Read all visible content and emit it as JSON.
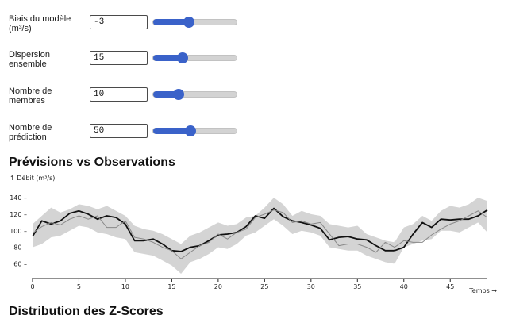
{
  "controls": [
    {
      "label": "Biais du modèle (m³/s)",
      "value": "-3",
      "fraction": 0.42
    },
    {
      "label": "Dispersion ensemble",
      "value": "15",
      "fraction": 0.35
    },
    {
      "label": "Nombre de membres",
      "value": "10",
      "fraction": 0.3
    },
    {
      "label": "Nombre de prédiction",
      "value": "50",
      "fraction": 0.44
    }
  ],
  "section_forecast": "Prévisions vs Observations",
  "section_zscores": "Distribution des Z-Scores",
  "chart_data": {
    "type": "line",
    "ylabel": "↑ Débit (m³/s)",
    "xlabel": "Temps →",
    "xlim": [
      0,
      49
    ],
    "ylim": [
      48,
      142
    ],
    "xticks": [
      0,
      5,
      10,
      15,
      20,
      25,
      30,
      35,
      40,
      45
    ],
    "yticks": [
      60,
      80,
      100,
      120,
      140
    ],
    "colors": {
      "band": "#d4d4d4",
      "prediction": "#111111",
      "observation": "#888888"
    },
    "x": [
      0,
      1,
      2,
      3,
      4,
      5,
      6,
      7,
      8,
      9,
      10,
      11,
      12,
      13,
      14,
      15,
      16,
      17,
      18,
      19,
      20,
      21,
      22,
      23,
      24,
      25,
      26,
      27,
      28,
      29,
      30,
      31,
      32,
      33,
      34,
      35,
      36,
      37,
      38,
      39,
      40,
      41,
      42,
      43,
      44,
      45,
      46,
      47,
      48,
      49
    ],
    "band_upper": [
      108,
      118,
      128,
      122,
      126,
      132,
      130,
      126,
      130,
      124,
      118,
      106,
      102,
      100,
      96,
      90,
      84,
      94,
      98,
      104,
      110,
      106,
      108,
      116,
      118,
      128,
      140,
      132,
      118,
      124,
      120,
      118,
      108,
      106,
      104,
      106,
      96,
      92,
      88,
      86,
      104,
      108,
      118,
      112,
      124,
      130,
      128,
      132,
      140,
      136
    ],
    "band_lower": [
      80,
      84,
      92,
      94,
      100,
      106,
      104,
      98,
      96,
      92,
      90,
      74,
      72,
      70,
      64,
      58,
      48,
      62,
      66,
      72,
      80,
      78,
      84,
      94,
      98,
      106,
      114,
      106,
      96,
      100,
      98,
      94,
      80,
      78,
      76,
      76,
      70,
      66,
      62,
      60,
      80,
      84,
      88,
      90,
      100,
      100,
      98,
      104,
      110,
      98
    ],
    "series": [
      {
        "role": "prediction",
        "values": [
          93,
          112,
          108,
          112,
          121,
          124,
          120,
          114,
          118,
          116,
          108,
          88,
          88,
          90,
          84,
          76,
          75,
          80,
          82,
          88,
          95,
          96,
          98,
          105,
          118,
          115,
          127,
          117,
          112,
          110,
          107,
          103,
          89,
          92,
          93,
          90,
          89,
          82,
          76,
          76,
          80,
          96,
          110,
          104,
          114,
          113,
          114,
          114,
          118,
          125
        ]
      },
      {
        "role": "observation",
        "values": [
          97,
          105,
          110,
          107,
          114,
          118,
          114,
          118,
          104,
          104,
          112,
          92,
          90,
          86,
          80,
          76,
          66,
          74,
          82,
          86,
          96,
          90,
          98,
          102,
          116,
          120,
          125,
          122,
          110,
          112,
          108,
          110,
          96,
          82,
          84,
          84,
          80,
          74,
          86,
          80,
          88,
          86,
          86,
          95,
          102,
          108,
          112,
          118,
          124,
          116
        ]
      }
    ]
  }
}
